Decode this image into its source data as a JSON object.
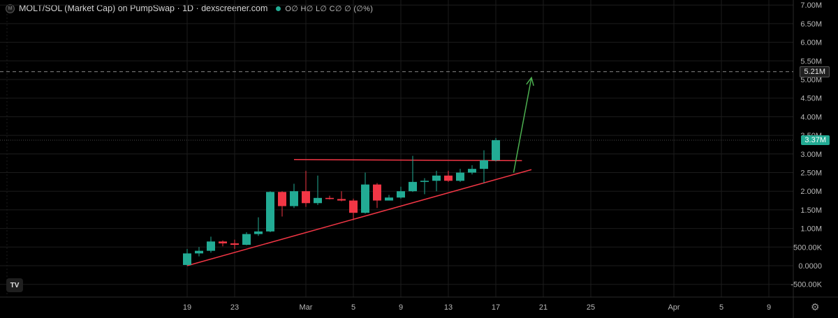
{
  "header": {
    "title": "MOLT/SOL (Market Cap) on PumpSwap · 1D · dexscreener.com",
    "ohlc": "O∅ H∅ L∅ C∅ ∅ (∅%)"
  },
  "price_badges": {
    "marker_label": "5.21M",
    "marker_value": 5.21,
    "current_label": "3.37M",
    "current_value": 3.37,
    "marker_color": "#1f1f1f",
    "current_color": "#22ab94"
  },
  "colors": {
    "up": "#22ab94",
    "down": "#f23645",
    "trend": "#f23645",
    "arrow": "#4caf50",
    "grid": "#1c1c1c"
  },
  "icons": {
    "logo": "tradingview-logo-icon",
    "settings": "gear-icon",
    "pair": "token-logo-icon"
  },
  "chart_data": {
    "type": "candlestick",
    "unit": "M",
    "ylim": [
      -0.7,
      7.0
    ],
    "y_ticks": [
      {
        "v": 7.0,
        "label": "7.00M"
      },
      {
        "v": 6.5,
        "label": "6.50M"
      },
      {
        "v": 6.0,
        "label": "6.00M"
      },
      {
        "v": 5.5,
        "label": "5.50M"
      },
      {
        "v": 5.0,
        "label": "5.00M"
      },
      {
        "v": 4.5,
        "label": "4.50M"
      },
      {
        "v": 4.0,
        "label": "4.00M"
      },
      {
        "v": 3.5,
        "label": "3.50M"
      },
      {
        "v": 3.0,
        "label": "3.00M"
      },
      {
        "v": 2.5,
        "label": "2.50M"
      },
      {
        "v": 2.0,
        "label": "2.00M"
      },
      {
        "v": 1.5,
        "label": "1.50M"
      },
      {
        "v": 1.0,
        "label": "1.00M"
      },
      {
        "v": 0.5,
        "label": "500.00K"
      },
      {
        "v": 0.0,
        "label": "0.0000"
      },
      {
        "v": -0.5,
        "label": "-500.00K"
      }
    ],
    "x_ticks": [
      {
        "day": 0,
        "label": "19"
      },
      {
        "day": 4,
        "label": "23"
      },
      {
        "day": 10,
        "label": "Mar"
      },
      {
        "day": 14,
        "label": "5"
      },
      {
        "day": 18,
        "label": "9"
      },
      {
        "day": 22,
        "label": "13"
      },
      {
        "day": 26,
        "label": "17"
      },
      {
        "day": 30,
        "label": "21"
      },
      {
        "day": 34,
        "label": "25"
      },
      {
        "day": 41,
        "label": "Apr"
      },
      {
        "day": 45,
        "label": "5"
      },
      {
        "day": 49,
        "label": "9"
      }
    ],
    "candles": [
      {
        "day": 0,
        "o": 0.02,
        "h": 0.45,
        "l": 0.0,
        "c": 0.33
      },
      {
        "day": 1,
        "o": 0.33,
        "h": 0.5,
        "l": 0.25,
        "c": 0.4
      },
      {
        "day": 2,
        "o": 0.4,
        "h": 0.78,
        "l": 0.35,
        "c": 0.65
      },
      {
        "day": 3,
        "o": 0.65,
        "h": 0.68,
        "l": 0.52,
        "c": 0.6
      },
      {
        "day": 4,
        "o": 0.6,
        "h": 0.7,
        "l": 0.45,
        "c": 0.56
      },
      {
        "day": 5,
        "o": 0.56,
        "h": 0.9,
        "l": 0.55,
        "c": 0.85
      },
      {
        "day": 6,
        "o": 0.85,
        "h": 1.3,
        "l": 0.8,
        "c": 0.92
      },
      {
        "day": 7,
        "o": 0.92,
        "h": 2.0,
        "l": 0.9,
        "c": 1.98
      },
      {
        "day": 8,
        "o": 1.98,
        "h": 2.0,
        "l": 1.32,
        "c": 1.6
      },
      {
        "day": 9,
        "o": 1.6,
        "h": 2.2,
        "l": 1.55,
        "c": 2.0
      },
      {
        "day": 10,
        "o": 2.0,
        "h": 2.55,
        "l": 1.58,
        "c": 1.68
      },
      {
        "day": 11,
        "o": 1.68,
        "h": 2.42,
        "l": 1.63,
        "c": 1.82
      },
      {
        "day": 12,
        "o": 1.82,
        "h": 1.88,
        "l": 1.78,
        "c": 1.79
      },
      {
        "day": 13,
        "o": 1.79,
        "h": 2.0,
        "l": 1.73,
        "c": 1.75
      },
      {
        "day": 14,
        "o": 1.75,
        "h": 1.8,
        "l": 1.22,
        "c": 1.42
      },
      {
        "day": 15,
        "o": 1.42,
        "h": 2.5,
        "l": 1.4,
        "c": 2.18
      },
      {
        "day": 16,
        "o": 2.18,
        "h": 2.22,
        "l": 1.55,
        "c": 1.75
      },
      {
        "day": 17,
        "o": 1.75,
        "h": 1.9,
        "l": 1.78,
        "c": 1.83
      },
      {
        "day": 18,
        "o": 1.83,
        "h": 2.12,
        "l": 1.8,
        "c": 2.0
      },
      {
        "day": 19,
        "o": 2.0,
        "h": 2.95,
        "l": 1.98,
        "c": 2.25
      },
      {
        "day": 20,
        "o": 2.25,
        "h": 2.35,
        "l": 1.92,
        "c": 2.28
      },
      {
        "day": 21,
        "o": 2.28,
        "h": 2.55,
        "l": 2.0,
        "c": 2.42
      },
      {
        "day": 22,
        "o": 2.42,
        "h": 2.55,
        "l": 2.25,
        "c": 2.28
      },
      {
        "day": 23,
        "o": 2.28,
        "h": 2.6,
        "l": 2.25,
        "c": 2.5
      },
      {
        "day": 24,
        "o": 2.5,
        "h": 2.7,
        "l": 2.45,
        "c": 2.6
      },
      {
        "day": 25,
        "o": 2.6,
        "h": 3.1,
        "l": 2.22,
        "c": 2.83
      },
      {
        "day": 26,
        "o": 2.83,
        "h": 3.43,
        "l": 2.8,
        "c": 3.37
      }
    ],
    "annotations": {
      "resistance": {
        "x1": 9,
        "y1": 2.85,
        "x2": 28.2,
        "y2": 2.82
      },
      "support": {
        "x1": 0,
        "y1": 0.0,
        "x2": 29.0,
        "y2": 2.58
      },
      "arrow": {
        "x1": 27.5,
        "y1": 2.5,
        "x2": 29.0,
        "y2": 5.05
      }
    }
  }
}
